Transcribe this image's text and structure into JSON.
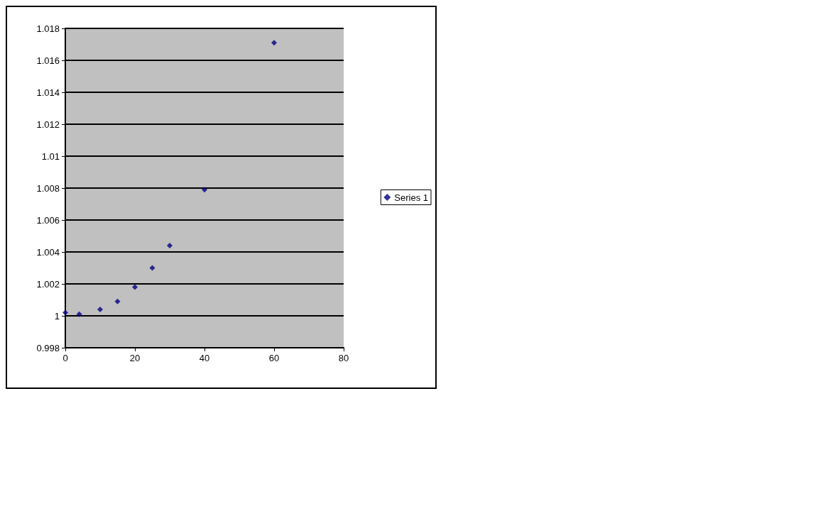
{
  "chart_data": {
    "type": "scatter",
    "x": [
      0,
      4,
      10,
      15,
      20,
      25,
      30,
      40,
      60
    ],
    "series": [
      {
        "name": "Series 1",
        "color": "#000080",
        "values": [
          1.0002,
          1.0001,
          1.0004,
          1.0009,
          1.0018,
          1.003,
          1.0044,
          1.0079,
          1.0171
        ]
      }
    ],
    "xlim": [
      0,
      80
    ],
    "xticks": [
      0,
      20,
      40,
      60,
      80
    ],
    "ylim": [
      0.998,
      1.018
    ],
    "yticks": [
      0.998,
      1,
      1.002,
      1.004,
      1.006,
      1.008,
      1.01,
      1.012,
      1.014,
      1.016,
      1.018
    ],
    "grid": "y",
    "legend": "right",
    "marker": "diamond"
  }
}
